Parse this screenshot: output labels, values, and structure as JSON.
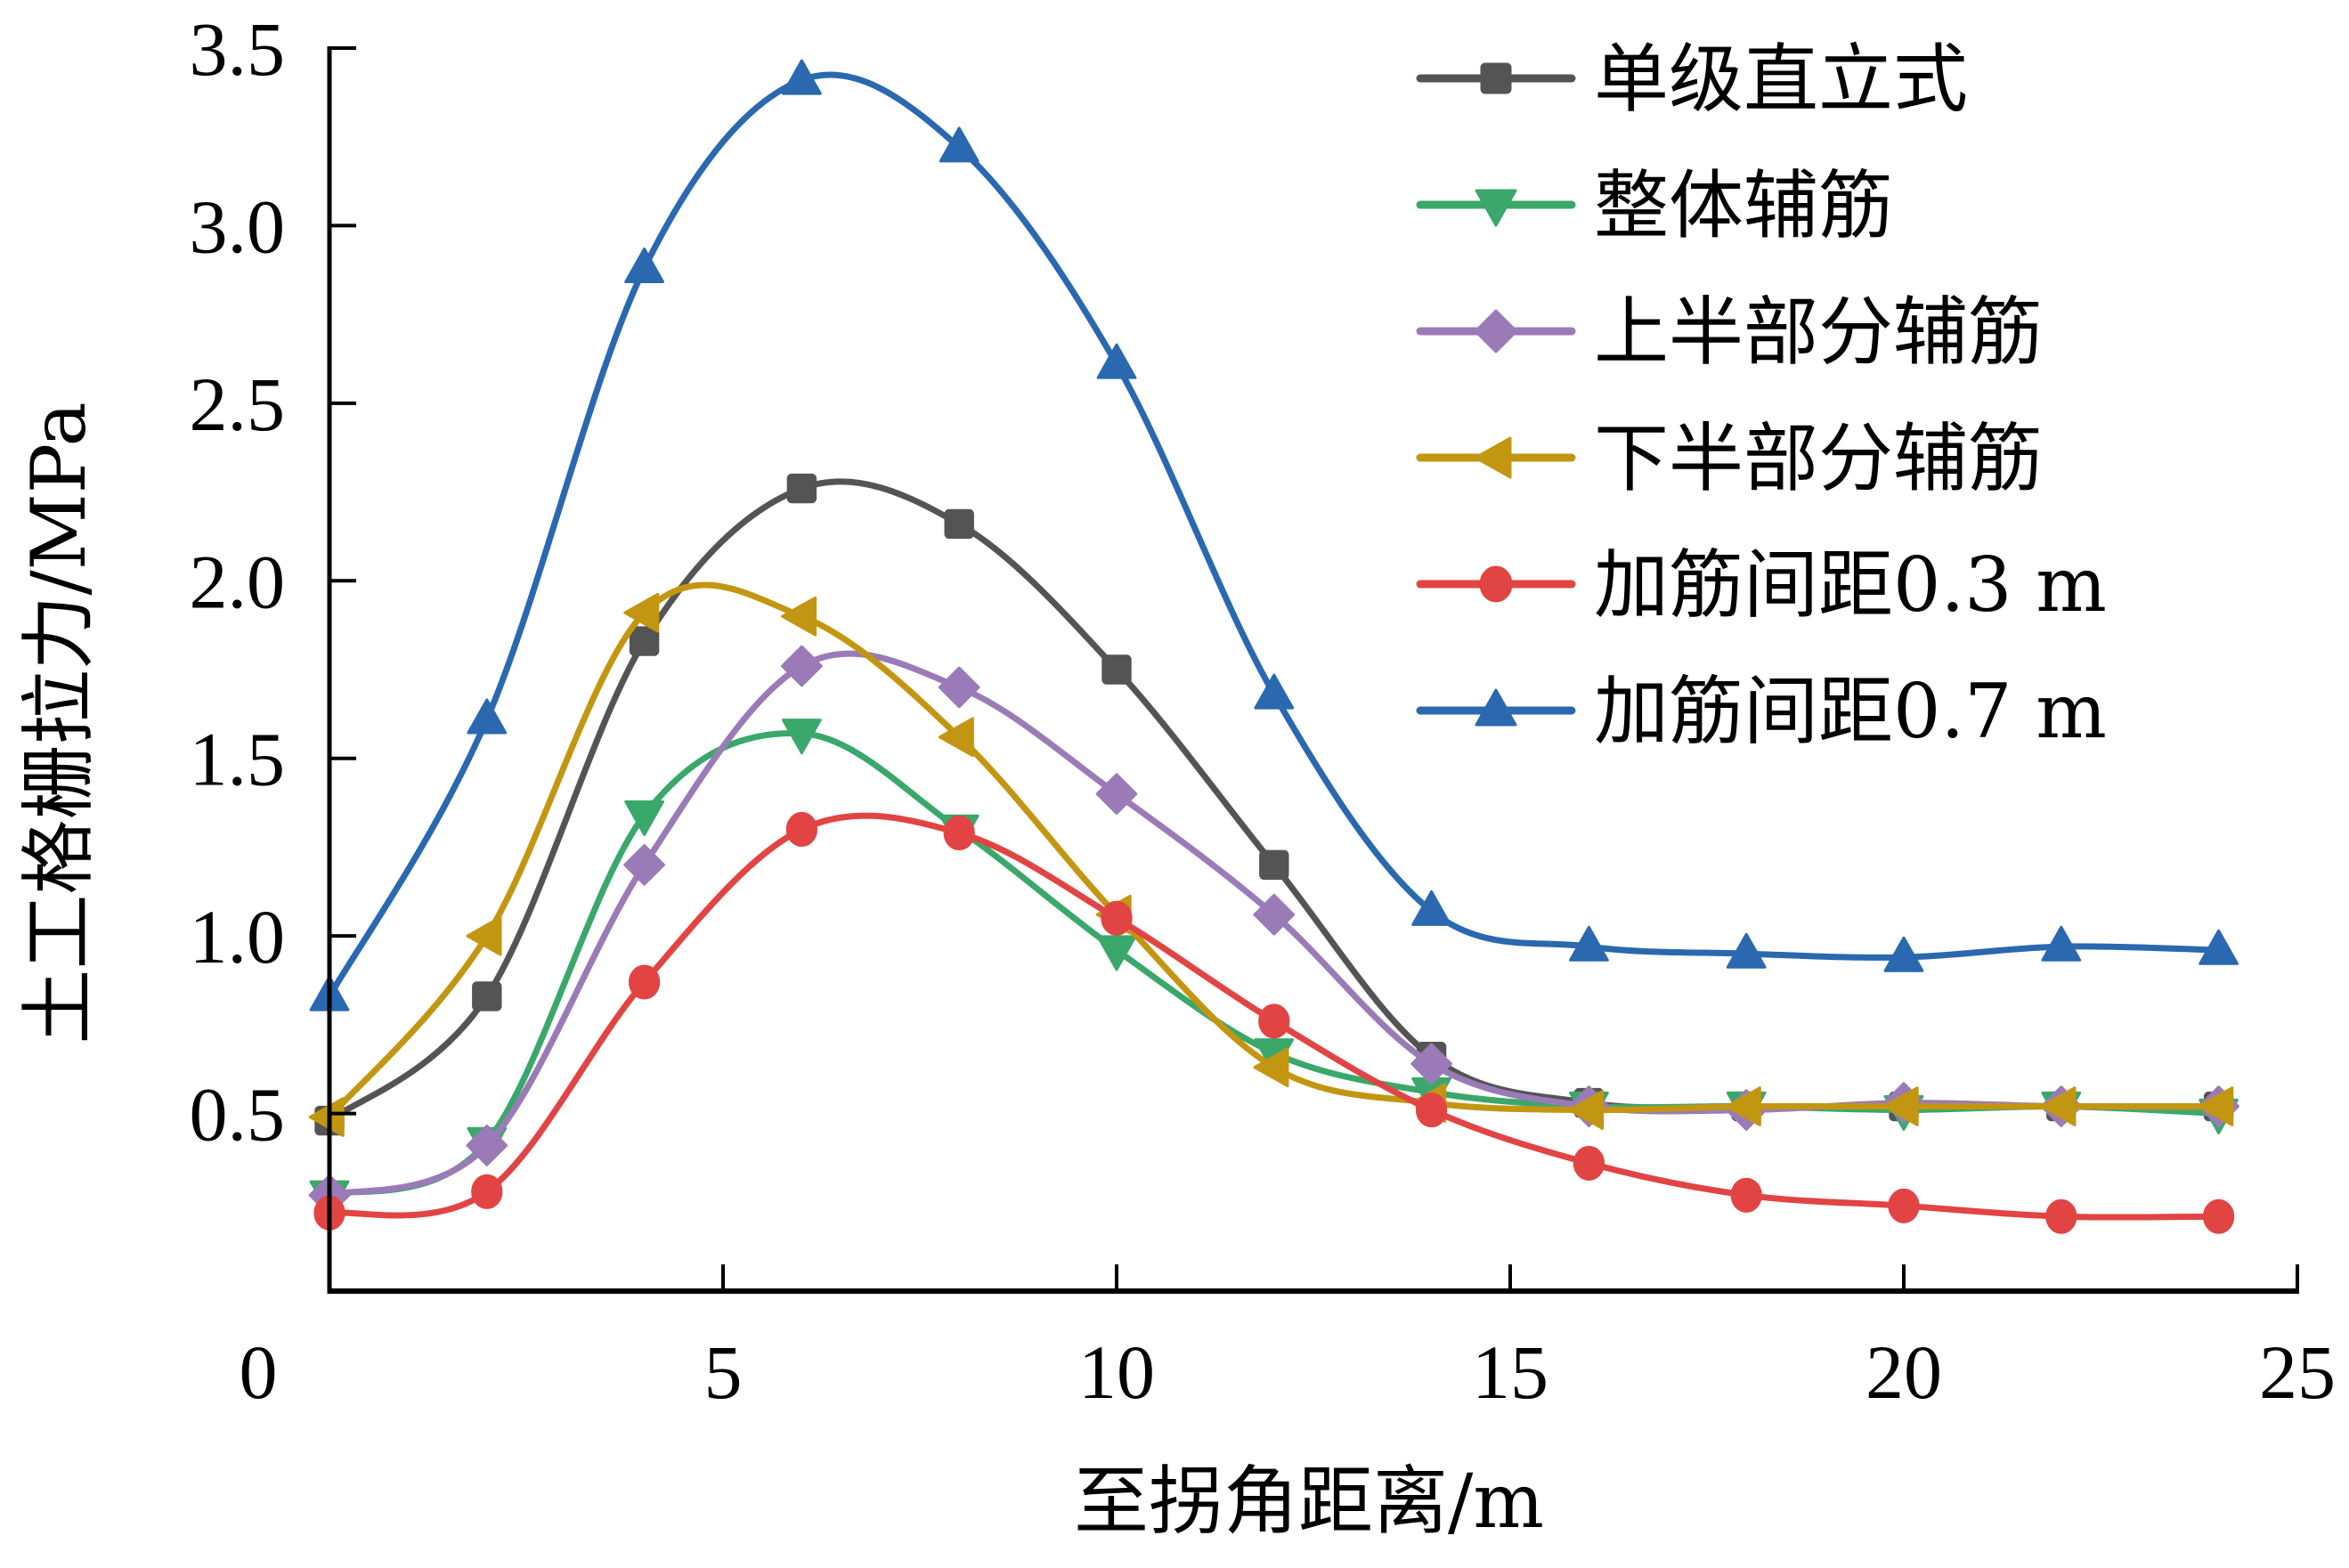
{
  "chart_data": {
    "type": "line",
    "title": "",
    "xlabel": "至拐角距离/m",
    "ylabel": "土工格栅拉力/MPa",
    "xlim": [
      0,
      25
    ],
    "ylim": [
      0,
      3.5
    ],
    "xticks": [
      "0",
      "5",
      "10",
      "15",
      "20",
      "25"
    ],
    "xtick_values": [
      0,
      5,
      10,
      15,
      20,
      25
    ],
    "yticks": [
      "0.5",
      "1.0",
      "1.5",
      "2.0",
      "2.5",
      "3.0",
      "3.5"
    ],
    "ytick_values": [
      0.5,
      1.0,
      1.5,
      2.0,
      2.5,
      3.0,
      3.5
    ],
    "grid": false,
    "legend_position": "top-right",
    "smooth": true,
    "x": [
      0,
      2,
      4,
      6,
      8,
      10,
      12,
      14,
      16,
      18,
      20,
      22,
      24
    ],
    "series": [
      {
        "name": "单级直立式",
        "color": "#545454",
        "marker": "square",
        "values": [
          0.48,
          0.83,
          1.83,
          2.26,
          2.16,
          1.75,
          1.2,
          0.66,
          0.53,
          0.52,
          0.52,
          0.52,
          0.52
        ]
      },
      {
        "name": "整体辅筋",
        "color": "#3aa86a",
        "marker": "triangle-down",
        "values": [
          0.27,
          0.42,
          1.34,
          1.57,
          1.3,
          0.96,
          0.67,
          0.56,
          0.52,
          0.52,
          0.51,
          0.52,
          0.5
        ]
      },
      {
        "name": "上半部分辅筋",
        "color": "#9b7bb7",
        "marker": "diamond",
        "values": [
          0.27,
          0.41,
          1.2,
          1.76,
          1.7,
          1.4,
          1.06,
          0.64,
          0.52,
          0.51,
          0.53,
          0.52,
          0.52
        ]
      },
      {
        "name": "下半部分辅筋",
        "color": "#c39612",
        "marker": "triangle-left",
        "values": [
          0.49,
          1.0,
          1.91,
          1.9,
          1.56,
          1.06,
          0.63,
          0.53,
          0.51,
          0.52,
          0.52,
          0.52,
          0.52
        ]
      },
      {
        "name": "加筋间距0.3 m",
        "color": "#e24444",
        "marker": "circle",
        "values": [
          0.22,
          0.28,
          0.87,
          1.3,
          1.29,
          1.05,
          0.76,
          0.51,
          0.36,
          0.27,
          0.24,
          0.21,
          0.21
        ]
      },
      {
        "name": "加筋间距0.7 m",
        "color": "#2a68b0",
        "marker": "triangle-up",
        "values": [
          0.83,
          1.61,
          2.88,
          3.41,
          3.22,
          2.61,
          1.68,
          1.07,
          0.97,
          0.95,
          0.94,
          0.97,
          0.96
        ]
      }
    ]
  }
}
